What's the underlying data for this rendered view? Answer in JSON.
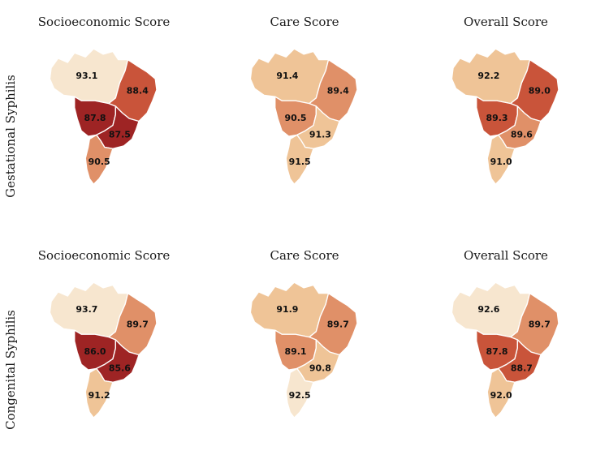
{
  "row_labels": [
    "Gestational Syphilis",
    "Congenital Syphilis"
  ],
  "panel_titles": [
    "Socioeconomic Score",
    "Care Score",
    "Overall Score"
  ],
  "region_order": [
    "north",
    "northeast",
    "central-west",
    "southeast",
    "south"
  ],
  "palette": [
    "#f7e6cf",
    "#efc497",
    "#e09068",
    "#c9543a",
    "#9e2424"
  ],
  "panels": [
    {
      "row": 0,
      "col": 0,
      "title": "Socioeconomic Score",
      "values": {
        "north": "93.1",
        "northeast": "88.4",
        "central-west": "87.8",
        "southeast": "87.5",
        "south": "90.5"
      },
      "classes": {
        "north": 0,
        "northeast": 3,
        "central-west": 4,
        "southeast": 4,
        "south": 2
      }
    },
    {
      "row": 0,
      "col": 1,
      "title": "Care Score",
      "values": {
        "north": "91.4",
        "northeast": "89.4",
        "central-west": "90.5",
        "southeast": "91.3",
        "south": "91.5"
      },
      "classes": {
        "north": 1,
        "northeast": 2,
        "central-west": 2,
        "southeast": 1,
        "south": 1
      }
    },
    {
      "row": 0,
      "col": 2,
      "title": "Overall Score",
      "values": {
        "north": "92.2",
        "northeast": "89.0",
        "central-west": "89.3",
        "southeast": "89.6",
        "south": "91.0"
      },
      "classes": {
        "north": 1,
        "northeast": 3,
        "central-west": 3,
        "southeast": 2,
        "south": 1
      }
    },
    {
      "row": 1,
      "col": 0,
      "title": "Socioeconomic Score",
      "values": {
        "north": "93.7",
        "northeast": "89.7",
        "central-west": "86.0",
        "southeast": "85.6",
        "south": "91.2"
      },
      "classes": {
        "north": 0,
        "northeast": 2,
        "central-west": 4,
        "southeast": 4,
        "south": 1
      }
    },
    {
      "row": 1,
      "col": 1,
      "title": "Care Score",
      "values": {
        "north": "91.9",
        "northeast": "89.7",
        "central-west": "89.1",
        "southeast": "90.8",
        "south": "92.5"
      },
      "classes": {
        "north": 1,
        "northeast": 2,
        "central-west": 2,
        "southeast": 1,
        "south": 0
      }
    },
    {
      "row": 1,
      "col": 2,
      "title": "Overall Score",
      "values": {
        "north": "92.6",
        "northeast": "89.7",
        "central-west": "87.8",
        "southeast": "88.7",
        "south": "92.0"
      },
      "classes": {
        "north": 0,
        "northeast": 2,
        "central-west": 3,
        "southeast": 3,
        "south": 1
      }
    }
  ]
}
